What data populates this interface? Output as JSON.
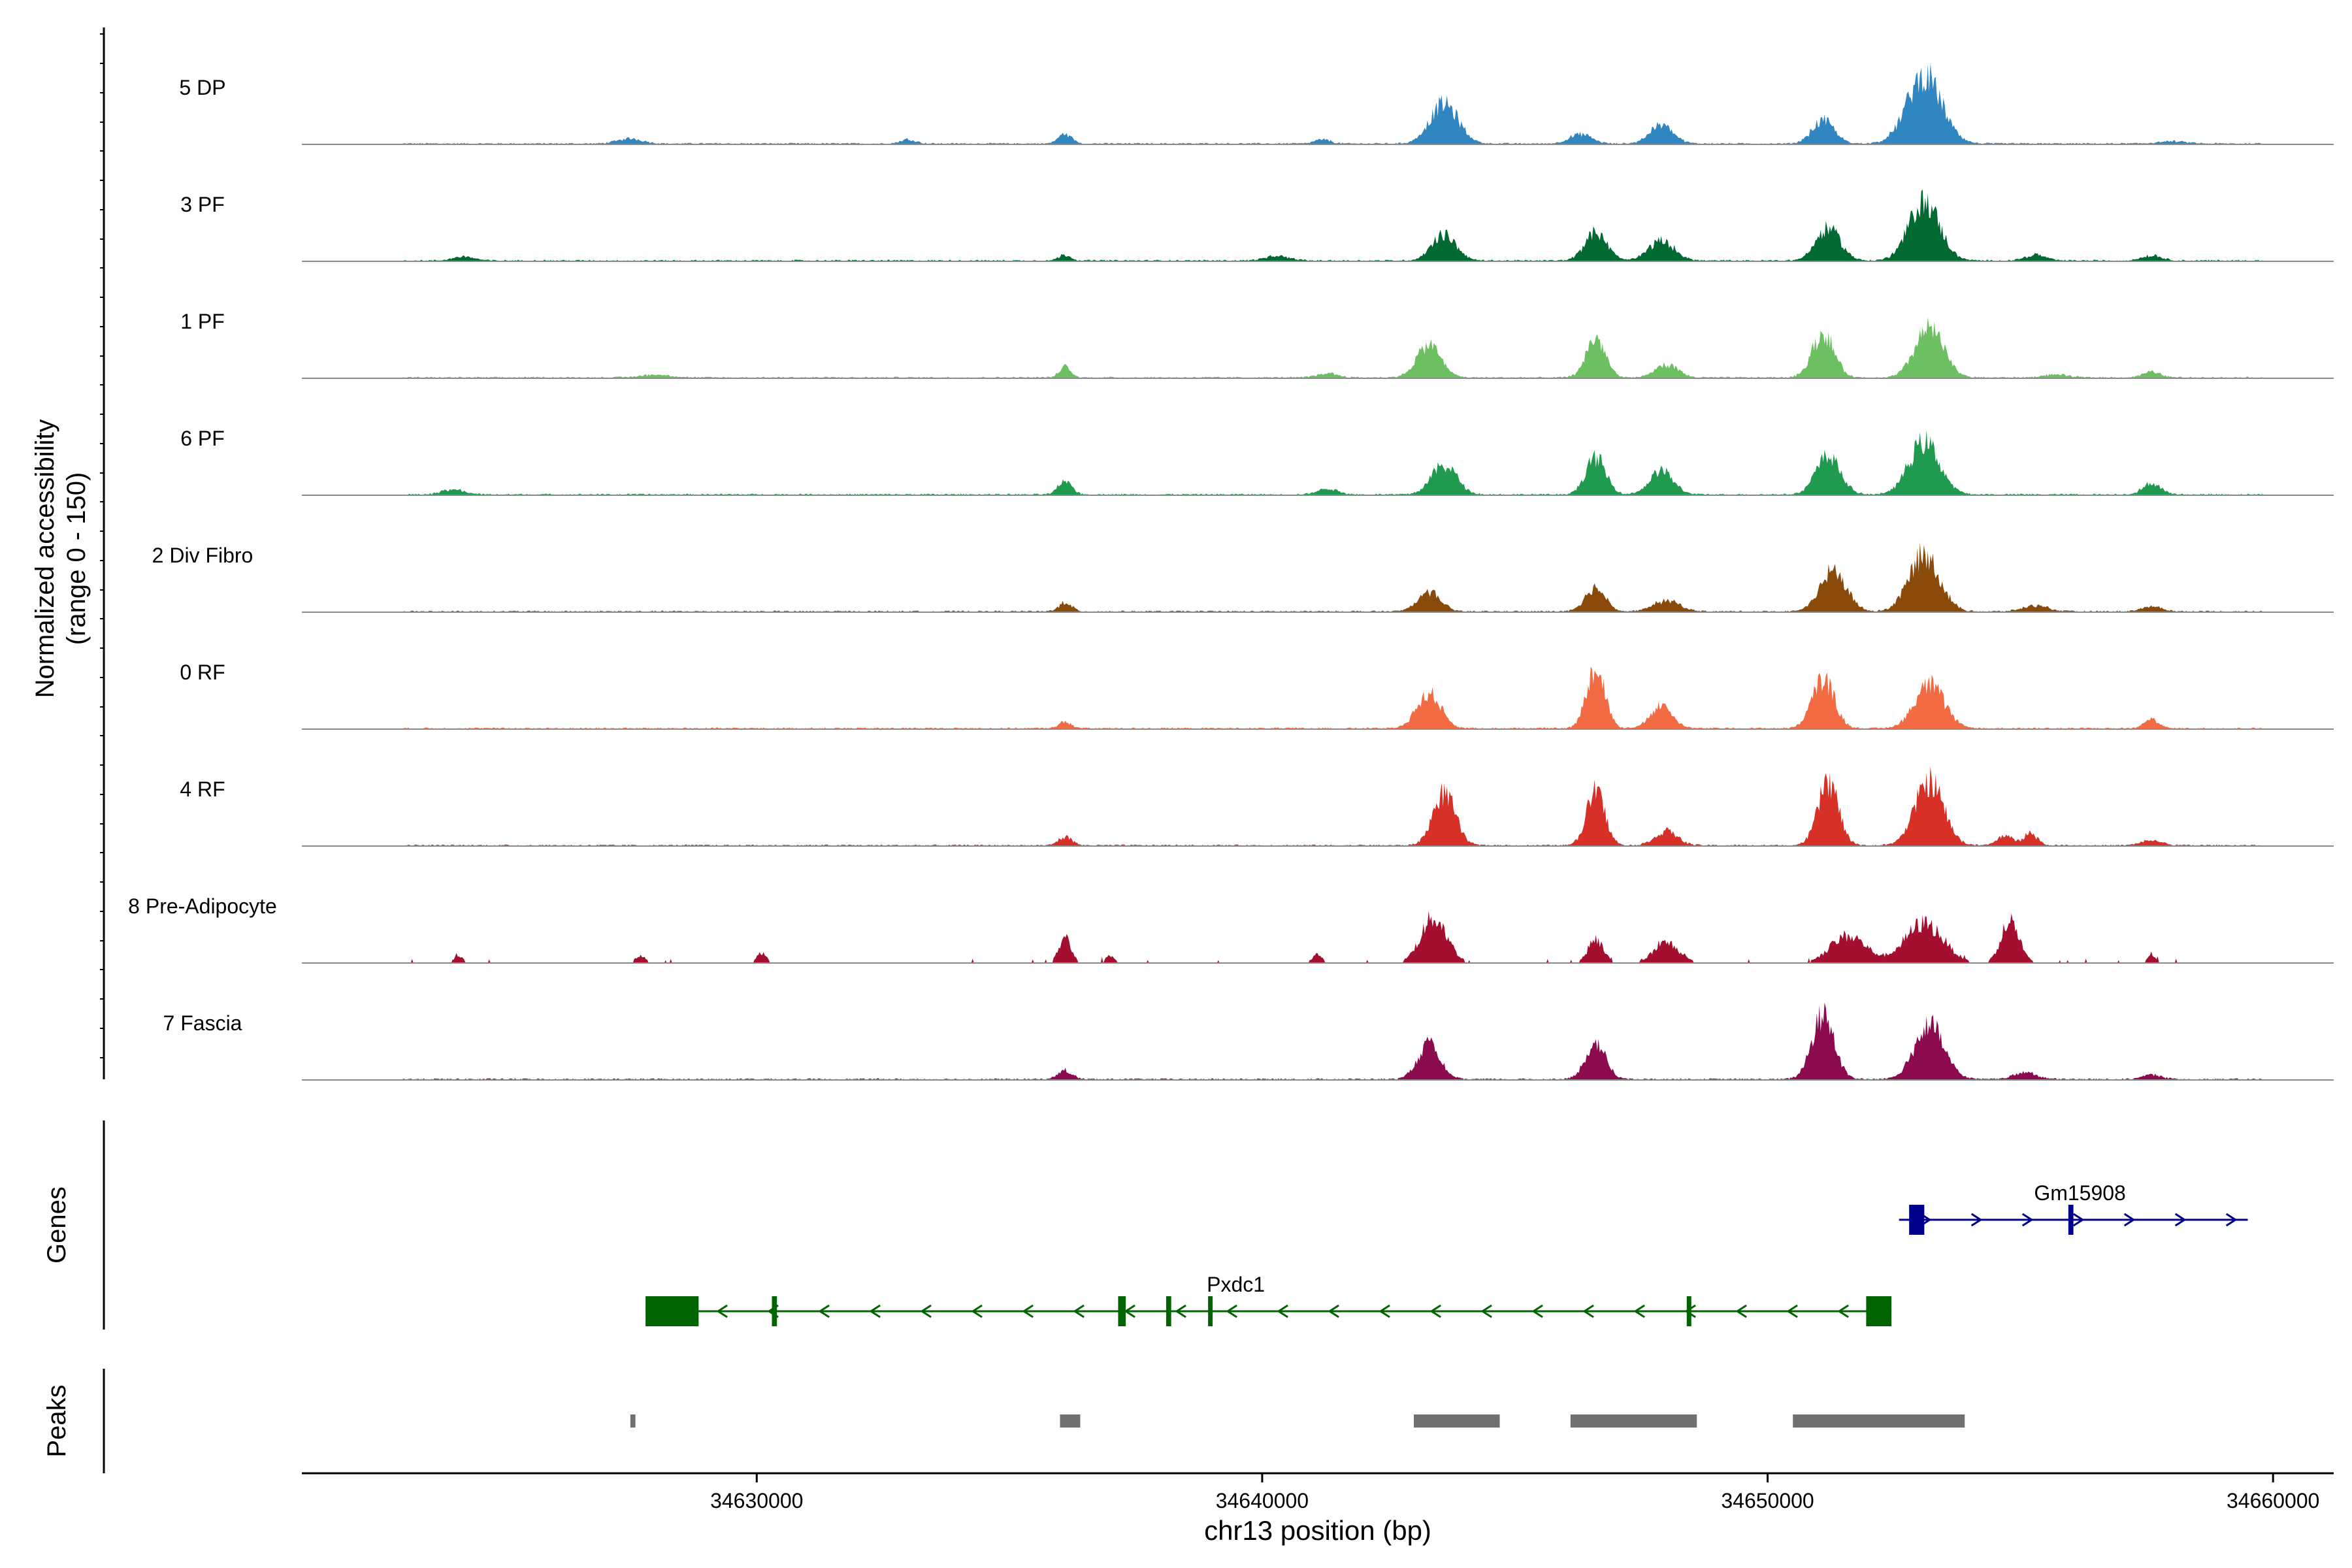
{
  "chart_data": {
    "type": "area",
    "title": "",
    "region": "chr13",
    "xlabel": "chr13 position (bp)",
    "ylabel_line1": "Normalized accessibility",
    "ylabel_line2": "(range 0 - 150)",
    "y_range": [
      0,
      150
    ],
    "x_range": [
      34621000,
      34661200
    ],
    "x_ticks": [
      34630000,
      34640000,
      34650000,
      34660000
    ],
    "x_tick_labels": [
      "34630000",
      "34640000",
      "34650000",
      "34660000"
    ],
    "coverage_start": 34623000,
    "coverage_end": 34659800,
    "series": [
      {
        "name": "5 DP",
        "color": "#2F86C1",
        "peaks": [
          [
            34627500,
            7,
            250
          ],
          [
            34633000,
            6,
            150
          ],
          [
            34636100,
            14,
            130
          ],
          [
            34641200,
            6,
            150
          ],
          [
            34643600,
            55,
            280
          ],
          [
            34646300,
            13,
            220
          ],
          [
            34647900,
            26,
            230
          ],
          [
            34651100,
            32,
            220
          ],
          [
            34653100,
            94,
            340
          ],
          [
            34658000,
            3,
            300
          ]
        ]
      },
      {
        "name": "3 PF",
        "color": "#006A32",
        "peaks": [
          [
            34624200,
            6,
            200
          ],
          [
            34636100,
            8,
            120
          ],
          [
            34640300,
            6,
            250
          ],
          [
            34643600,
            36,
            240
          ],
          [
            34646600,
            39,
            220
          ],
          [
            34647900,
            27,
            260
          ],
          [
            34651200,
            45,
            240
          ],
          [
            34653100,
            82,
            300
          ],
          [
            34655300,
            8,
            200
          ],
          [
            34657600,
            7,
            200
          ]
        ]
      },
      {
        "name": "1 PF",
        "color": "#6CC062",
        "peaks": [
          [
            34628000,
            4,
            300
          ],
          [
            34636100,
            15,
            110
          ],
          [
            34641300,
            6,
            200
          ],
          [
            34643300,
            45,
            240
          ],
          [
            34646600,
            55,
            190
          ],
          [
            34648000,
            18,
            220
          ],
          [
            34651100,
            60,
            220
          ],
          [
            34653200,
            68,
            280
          ],
          [
            34655700,
            4,
            250
          ],
          [
            34657600,
            8,
            180
          ]
        ]
      },
      {
        "name": "6 PF",
        "color": "#1F9A4F",
        "peaks": [
          [
            34624000,
            7,
            220
          ],
          [
            34636100,
            20,
            130
          ],
          [
            34641300,
            8,
            200
          ],
          [
            34643600,
            41,
            250
          ],
          [
            34646600,
            50,
            200
          ],
          [
            34647900,
            33,
            230
          ],
          [
            34651200,
            53,
            240
          ],
          [
            34653100,
            73,
            300
          ],
          [
            34657600,
            15,
            180
          ]
        ]
      },
      {
        "name": "2 Div Fibro",
        "color": "#8A4B0A",
        "peaks": [
          [
            34636100,
            12,
            130
          ],
          [
            34643300,
            28,
            220
          ],
          [
            34646600,
            33,
            200
          ],
          [
            34648000,
            15,
            260
          ],
          [
            34651300,
            56,
            260
          ],
          [
            34653100,
            79,
            300
          ],
          [
            34655300,
            8,
            250
          ],
          [
            34657600,
            7,
            200
          ]
        ]
      },
      {
        "name": "0 RF",
        "color": "#F26B42",
        "peaks": [
          [
            34636100,
            9,
            130
          ],
          [
            34643300,
            48,
            240
          ],
          [
            34646600,
            87,
            180
          ],
          [
            34647900,
            30,
            220
          ],
          [
            34651100,
            68,
            220
          ],
          [
            34653200,
            61,
            290
          ],
          [
            34657600,
            13,
            140
          ]
        ]
      },
      {
        "name": "4 RF",
        "color": "#D73027",
        "peaks": [
          [
            34636100,
            12,
            130
          ],
          [
            34643600,
            72,
            220
          ],
          [
            34646600,
            75,
            180
          ],
          [
            34648000,
            20,
            220
          ],
          [
            34651200,
            89,
            200
          ],
          [
            34653200,
            89,
            280
          ],
          [
            34654700,
            14,
            150
          ],
          [
            34655200,
            18,
            130
          ],
          [
            34657600,
            7,
            200
          ]
        ]
      },
      {
        "name": "8 Pre-Adipocyte",
        "color": "#A50F2F",
        "peaks": [
          [
            34624100,
            10,
            90
          ],
          [
            34627700,
            10,
            100
          ],
          [
            34630100,
            15,
            90
          ],
          [
            34636100,
            35,
            120
          ],
          [
            34637000,
            10,
            100
          ],
          [
            34641100,
            12,
            100
          ],
          [
            34643400,
            63,
            260
          ],
          [
            34646600,
            33,
            150
          ],
          [
            34648000,
            28,
            250
          ],
          [
            34651600,
            38,
            350
          ],
          [
            34653100,
            55,
            380
          ],
          [
            34654800,
            58,
            180
          ],
          [
            34657600,
            12,
            80
          ]
        ]
      },
      {
        "name": "7 Fascia",
        "color": "#8C0A4E",
        "peaks": [
          [
            34636100,
            12,
            140
          ],
          [
            34643300,
            47,
            220
          ],
          [
            34646600,
            50,
            200
          ],
          [
            34651100,
            89,
            220
          ],
          [
            34653200,
            74,
            290
          ],
          [
            34655100,
            10,
            220
          ],
          [
            34657600,
            6,
            200
          ]
        ]
      }
    ]
  },
  "genes_track": {
    "label": "Genes",
    "genes": [
      {
        "name": "Pxdc1",
        "strand": "-",
        "color": "#006400",
        "start": 34627800,
        "end": 34652450,
        "exons": [
          [
            34627800,
            34628850
          ],
          [
            34630300,
            34630400
          ],
          [
            34637150,
            34637300
          ],
          [
            34638100,
            34638200
          ],
          [
            34638930,
            34639000
          ],
          [
            34648400,
            34648470
          ],
          [
            34651950,
            34652450
          ]
        ]
      },
      {
        "name": "Gm15908",
        "strand": "+",
        "color": "#00008B",
        "start": 34652600,
        "end": 34659500,
        "exons": [
          [
            34652800,
            34653100
          ],
          [
            34655950,
            34656050
          ]
        ]
      }
    ]
  },
  "peaks_track": {
    "label": "Peaks",
    "color": "#707070",
    "peaks": [
      [
        34627500,
        34627600
      ],
      [
        34636000,
        34636400
      ],
      [
        34643000,
        34644700
      ],
      [
        34646100,
        34648600
      ],
      [
        34650500,
        34653900
      ]
    ]
  }
}
